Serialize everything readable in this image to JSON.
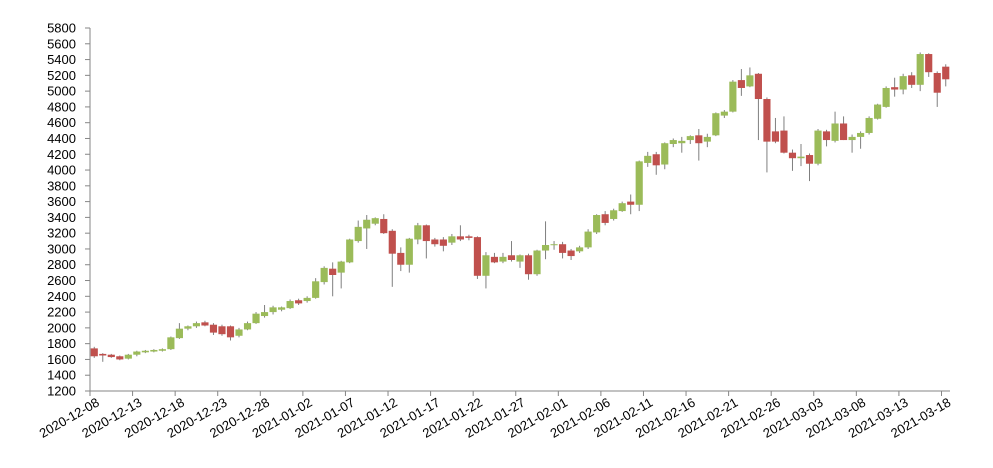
{
  "chart_data": {
    "type": "candlestick",
    "categories": [
      "2020-12-08",
      null,
      null,
      null,
      null,
      "2020-12-13",
      null,
      null,
      null,
      null,
      "2020-12-18",
      null,
      null,
      null,
      null,
      "2020-12-23",
      null,
      null,
      null,
      null,
      "2020-12-28",
      null,
      null,
      null,
      null,
      "2021-01-02",
      null,
      null,
      null,
      null,
      "2021-01-07",
      null,
      null,
      null,
      null,
      "2021-01-12",
      null,
      null,
      null,
      null,
      "2021-01-17",
      null,
      null,
      null,
      null,
      "2021-01-22",
      null,
      null,
      null,
      null,
      "2021-01-27",
      null,
      null,
      null,
      null,
      "2021-02-01",
      null,
      null,
      null,
      null,
      "2021-02-06",
      null,
      null,
      null,
      null,
      "2021-02-11",
      null,
      null,
      null,
      null,
      "2021-02-16",
      null,
      null,
      null,
      null,
      "2021-02-21",
      null,
      null,
      null,
      null,
      "2021-02-26",
      null,
      null,
      null,
      null,
      "2021-03-03",
      null,
      null,
      null,
      null,
      "2021-03-08",
      null,
      null,
      null,
      null,
      "2021-03-13",
      null,
      null,
      null,
      null,
      "2021-03-18"
    ],
    "open": [
      1740,
      1670,
      1660,
      1640,
      1610,
      1660,
      1690,
      1700,
      1710,
      1730,
      1870,
      1990,
      2020,
      2070,
      2040,
      2020,
      2020,
      1900,
      1980,
      2060,
      2150,
      2200,
      2230,
      2250,
      2350,
      2340,
      2380,
      2580,
      2750,
      2700,
      2830,
      3100,
      3260,
      3320,
      3380,
      3230,
      2950,
      2800,
      3120,
      3300,
      3120,
      3120,
      3080,
      3160,
      3160,
      3150,
      2660,
      2900,
      2840,
      2920,
      2840,
      2920,
      2680,
      2980,
      3050,
      3060,
      2980,
      2970,
      3020,
      3210,
      3440,
      3380,
      3480,
      3600,
      3560,
      4090,
      4200,
      4070,
      4330,
      4340,
      4380,
      4440,
      4360,
      4440,
      4690,
      4740,
      5140,
      5060,
      5220,
      4900,
      4490,
      4500,
      4220,
      4150,
      4190,
      4080,
      4490,
      4370,
      4590,
      4380,
      4420,
      4470,
      4650,
      4800,
      5050,
      5020,
      5200,
      5080,
      5470,
      5230,
      5310
    ],
    "high": [
      1760,
      1680,
      1670,
      1650,
      1670,
      1710,
      1720,
      1730,
      1740,
      1890,
      2060,
      2030,
      2080,
      2090,
      2060,
      2040,
      2030,
      2000,
      2080,
      2200,
      2290,
      2280,
      2270,
      2360,
      2370,
      2400,
      2630,
      2780,
      2830,
      2850,
      3130,
      3360,
      3430,
      3400,
      3440,
      3250,
      3020,
      3140,
      3330,
      3310,
      3140,
      3150,
      3190,
      3300,
      3180,
      3160,
      2960,
      2950,
      2950,
      3100,
      2930,
      2940,
      2990,
      3350,
      3100,
      3090,
      3000,
      3040,
      3250,
      3440,
      3480,
      3510,
      3600,
      3690,
      4120,
      4230,
      4230,
      4350,
      4400,
      4420,
      4440,
      4520,
      4460,
      4730,
      4760,
      5140,
      5280,
      5300,
      5230,
      4920,
      4660,
      4680,
      4260,
      4330,
      4210,
      4520,
      4510,
      4740,
      4680,
      4450,
      4490,
      4680,
      4840,
      5060,
      5170,
      5220,
      5240,
      5490,
      5480,
      5250,
      5340
    ],
    "low": [
      1620,
      1570,
      1620,
      1590,
      1600,
      1640,
      1680,
      1690,
      1700,
      1720,
      1860,
      1970,
      2000,
      2020,
      1910,
      1900,
      1840,
      1880,
      1970,
      2050,
      2130,
      2170,
      2210,
      2240,
      2290,
      2320,
      2370,
      2550,
      2400,
      2500,
      2820,
      3080,
      3000,
      3300,
      3190,
      2520,
      2720,
      2700,
      3060,
      2880,
      3030,
      2970,
      3050,
      3100,
      3110,
      2620,
      2500,
      2820,
      2820,
      2840,
      2760,
      2610,
      2660,
      2870,
      2990,
      2880,
      2860,
      2950,
      3000,
      3190,
      3300,
      3360,
      3470,
      3440,
      3480,
      4040,
      3940,
      4010,
      4290,
      4220,
      4330,
      4120,
      4290,
      4430,
      4660,
      4730,
      4940,
      5050,
      4380,
      3970,
      4340,
      4210,
      3990,
      4050,
      3860,
      4060,
      4300,
      4350,
      4380,
      4220,
      4270,
      4450,
      4640,
      4790,
      4930,
      4960,
      5040,
      5000,
      5180,
      4800,
      5060
    ],
    "close": [
      1640,
      1650,
      1630,
      1600,
      1660,
      1700,
      1710,
      1720,
      1730,
      1880,
      1990,
      2020,
      2060,
      2030,
      1940,
      1920,
      1880,
      1980,
      2060,
      2180,
      2200,
      2260,
      2260,
      2340,
      2310,
      2380,
      2590,
      2760,
      2670,
      2840,
      3120,
      3280,
      3370,
      3390,
      3200,
      2940,
      2800,
      3130,
      3300,
      3100,
      3060,
      3040,
      3160,
      3120,
      3140,
      2660,
      2920,
      2830,
      2900,
      2860,
      2920,
      2680,
      2980,
      3050,
      3060,
      2950,
      2910,
      3020,
      3220,
      3430,
      3330,
      3490,
      3580,
      3560,
      4110,
      4180,
      4060,
      4340,
      4380,
      4370,
      4430,
      4340,
      4420,
      4720,
      4740,
      5120,
      5040,
      5200,
      4900,
      4360,
      4360,
      4220,
      4150,
      4170,
      4080,
      4500,
      4380,
      4590,
      4380,
      4420,
      4470,
      4660,
      4830,
      5040,
      5020,
      5190,
      5080,
      5470,
      5240,
      4980,
      5150
    ],
    "up_color": "#9bbb59",
    "down_color": "#c0504d",
    "ylim": [
      1200,
      5800
    ],
    "yticks": [
      1200,
      1400,
      1600,
      1800,
      2000,
      2200,
      2400,
      2600,
      2800,
      3000,
      3200,
      3400,
      3600,
      3800,
      4000,
      4200,
      4400,
      4600,
      4800,
      5000,
      5200,
      5400,
      5600,
      5800
    ],
    "grid": false
  }
}
